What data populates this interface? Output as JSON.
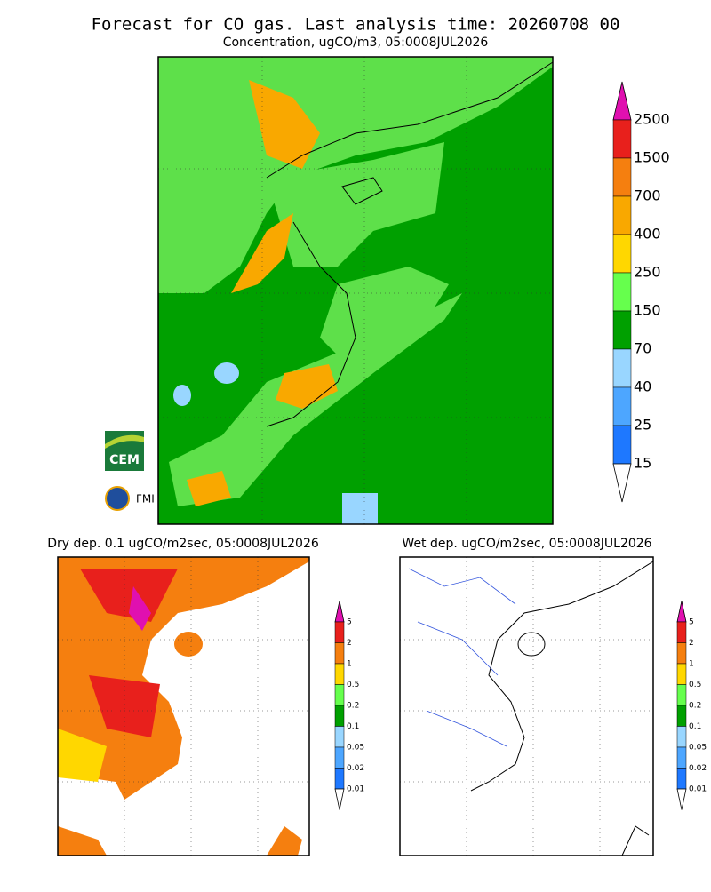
{
  "title": "Forecast for CO gas. Last analysis time: 20260708 00",
  "main_map": {
    "subtitle": "Concentration, ugCO/m3, 05:0008JUL2026",
    "legend": [
      "2500",
      "1500",
      "700",
      "400",
      "250",
      "150",
      "70",
      "40",
      "25",
      "15"
    ]
  },
  "dry_map": {
    "subtitle": "Dry dep. 0.1 ugCO/m2sec, 05:0008JUL2026",
    "legend": [
      "5",
      "2",
      "1",
      "0.5",
      "0.2",
      "0.1",
      "0.05",
      "0.02",
      "0.01"
    ]
  },
  "wet_map": {
    "subtitle": "Wet dep. ugCO/m2sec, 05:0008JUL2026",
    "legend": [
      "5",
      "2",
      "1",
      "0.5",
      "0.2",
      "0.1",
      "0.05",
      "0.02",
      "0.01"
    ]
  },
  "logos": [
    "CEM",
    "FMI"
  ]
}
